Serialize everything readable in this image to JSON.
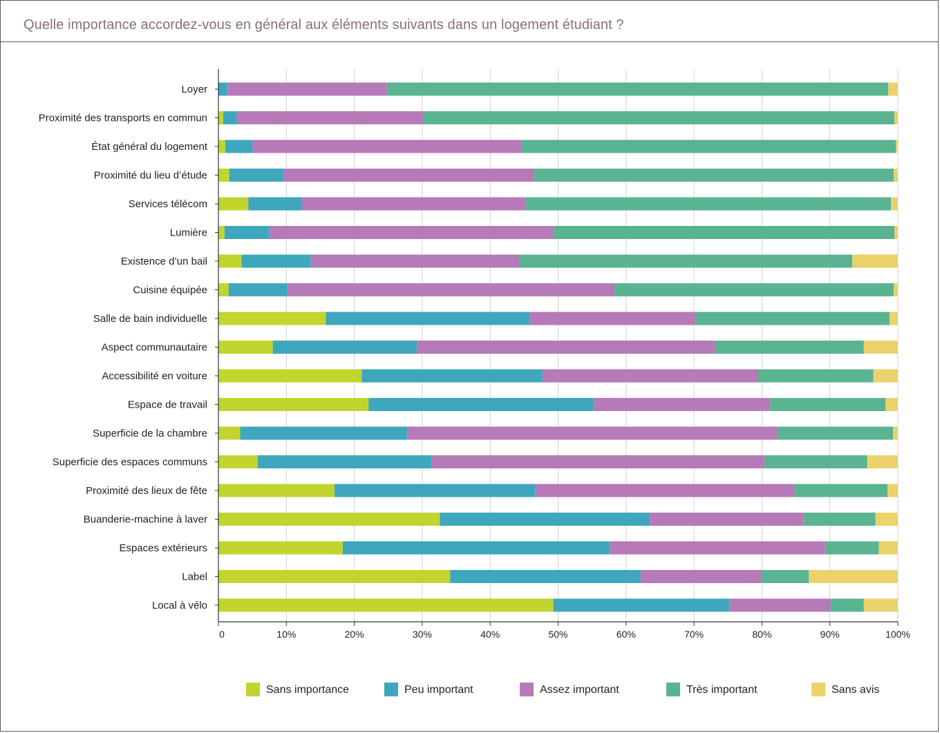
{
  "chart_data": {
    "type": "bar",
    "orientation": "horizontal",
    "stacked": true,
    "title": "Quelle importance accordez-vous en général aux éléments suivants dans un logement étudiant ?",
    "xlim": [
      0,
      100
    ],
    "x_ticks": [
      0,
      10,
      20,
      30,
      40,
      50,
      60,
      70,
      80,
      90,
      100
    ],
    "x_tick_labels": [
      "0",
      "10%",
      "20%",
      "30%",
      "40%",
      "50%",
      "60%",
      "70%",
      "80%",
      "90%",
      "100%"
    ],
    "grid": "vertical",
    "legend_position": "bottom",
    "categories": [
      "Loyer",
      "Proximité des transports en commun",
      "État général du logement",
      "Proximité du lieu d’étude",
      "Services télécom",
      "Lumière",
      "Existence d’un bail",
      "Cuisine équipée",
      "Salle de bain individuelle",
      "Aspect communautaire",
      "Accessibilité en voiture",
      "Espace de travail",
      "Superficie de la chambre",
      "Superficie des espaces communs",
      "Proximité des lieux de fête",
      "Buanderie-machine à laver",
      "Espaces extérieurs",
      "Label",
      "Local à vélo"
    ],
    "series": [
      {
        "name": "Sans importance",
        "color": "#c2d52e",
        "values": [
          0,
          0.7,
          1,
          1.6,
          4.4,
          0.9,
          3.4,
          1.5,
          15.8,
          8,
          21.1,
          22.1,
          3.2,
          5.8,
          17.1,
          32.6,
          18.3,
          34.1,
          49.3
        ]
      },
      {
        "name": "Peu important",
        "color": "#3ea7bd",
        "values": [
          1.3,
          2,
          4,
          8,
          7.9,
          6.6,
          10.2,
          8.7,
          30,
          21.2,
          26.6,
          33.1,
          24.6,
          25.6,
          29.5,
          30.9,
          39.3,
          28,
          25.9
        ]
      },
      {
        "name": "Assez important",
        "color": "#b67ab8",
        "values": [
          23.5,
          27.4,
          39.7,
          36.9,
          32.9,
          41.9,
          30.7,
          48.1,
          24.4,
          43.9,
          31.7,
          26,
          54.5,
          49,
          38.2,
          22.6,
          31.7,
          17.9,
          14.9
        ]
      },
      {
        "name": "Très important",
        "color": "#5bb491",
        "values": [
          73.8,
          69.4,
          55,
          52.9,
          53.8,
          50.1,
          49,
          41.1,
          28.6,
          21.9,
          17,
          17,
          17,
          15.1,
          13.7,
          10.6,
          7.9,
          6.9,
          4.9
        ]
      },
      {
        "name": "Sans avis",
        "color": "#ecd26b",
        "values": [
          1.4,
          0.5,
          0.3,
          0.6,
          1,
          0.5,
          6.7,
          0.6,
          1.2,
          5,
          3.6,
          1.8,
          0.7,
          4.5,
          1.5,
          3.3,
          2.8,
          13.1,
          5
        ]
      }
    ]
  }
}
